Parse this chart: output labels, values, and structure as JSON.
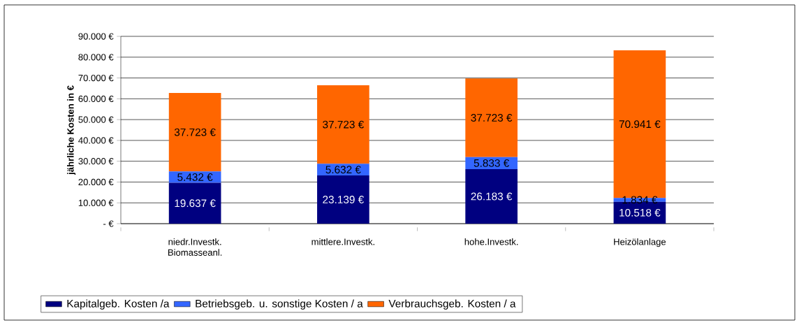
{
  "chart_data": {
    "type": "bar",
    "stacked": true,
    "ylabel": "jährliche Kosten in €",
    "categories": [
      "niedr.Investk. Biomasseanl.",
      "mittlere.Investk.",
      "hohe.Investk.",
      "Heizölanlage"
    ],
    "series": [
      {
        "name": "Kapitalgeb. Kosten /a",
        "color": "#000080",
        "values": [
          19637,
          23139,
          26183,
          10518
        ],
        "value_labels": [
          "19.637 €",
          "23.139 €",
          "26.183 €",
          "10.518 €"
        ]
      },
      {
        "name": "Betriebsgeb. u. sonstige Kosten / a",
        "color": "#3366ff",
        "values": [
          5432,
          5632,
          5833,
          1834
        ],
        "value_labels": [
          "5.432 €",
          "5.632 €",
          "5.833 €",
          "1.834 €"
        ]
      },
      {
        "name": "Verbrauchsgeb. Kosten / a",
        "color": "#ff6600",
        "values": [
          37723,
          37723,
          37723,
          70941
        ],
        "value_labels": [
          "37.723 €",
          "37.723 €",
          "37.723 €",
          "70.941 €"
        ]
      }
    ],
    "ylim": [
      0,
      90000
    ],
    "yticks": [
      {
        "value": 0,
        "label": "- €"
      },
      {
        "value": 10000,
        "label": "10.000 €"
      },
      {
        "value": 20000,
        "label": "20.000 €"
      },
      {
        "value": 30000,
        "label": "30.000 €"
      },
      {
        "value": 40000,
        "label": "40.000 €"
      },
      {
        "value": 50000,
        "label": "50.000 €"
      },
      {
        "value": 60000,
        "label": "60.000 €"
      },
      {
        "value": 70000,
        "label": "70.000 €"
      },
      {
        "value": 80000,
        "label": "80.000 €"
      },
      {
        "value": 90000,
        "label": "90.000 €"
      }
    ],
    "grid": "y",
    "legend": "bottom"
  }
}
